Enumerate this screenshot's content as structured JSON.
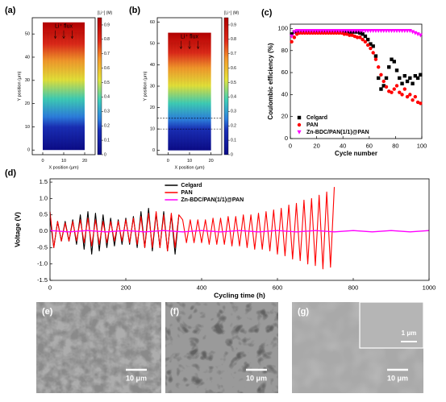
{
  "chart_data": [
    {
      "type": "contour",
      "panel_label": "(a)",
      "xlabel": "X position (μm)",
      "ylabel": "Y position (μm)",
      "xlim": [
        -5,
        25
      ],
      "xticks": [
        0,
        10,
        20
      ],
      "ylim": [
        -2,
        57
      ],
      "yticks": [
        0,
        10,
        20,
        30,
        40,
        50
      ],
      "domain_x": [
        0,
        20
      ],
      "domain_y": [
        0,
        55
      ],
      "annotation": "Li⁺ flux",
      "colorbar_label": "[Li⁺] (M)",
      "colorbar_lim": [
        0,
        0.95
      ],
      "colorbar_ticks": [
        0,
        0.1,
        0.2,
        0.3,
        0.4,
        0.5,
        0.6,
        0.7,
        0.8,
        0.9
      ]
    },
    {
      "type": "contour",
      "panel_label": "(b)",
      "xlabel": "X position (μm)",
      "ylabel": "Y position (μm)",
      "xlim": [
        -5,
        25
      ],
      "xticks": [
        0,
        10,
        20
      ],
      "ylim": [
        -2,
        62
      ],
      "yticks": [
        0,
        10,
        20,
        30,
        40,
        50,
        60
      ],
      "domain_x": [
        0,
        20
      ],
      "domain_y": [
        0,
        55
      ],
      "annotation": "Li⁺ flux",
      "dashed_lines": [
        10,
        15
      ],
      "colorbar_label": "[Li⁺] (M)",
      "colorbar_lim": [
        0,
        0.95
      ],
      "colorbar_ticks": [
        0,
        0.1,
        0.2,
        0.3,
        0.4,
        0.5,
        0.6,
        0.7,
        0.8,
        0.9
      ]
    },
    {
      "type": "scatter",
      "panel_label": "(c)",
      "xlabel": "Cycle number",
      "ylabel": "Coulombic efficiency (%)",
      "xlim": [
        0,
        100
      ],
      "xticks": [
        0,
        20,
        40,
        60,
        80,
        100
      ],
      "ylim": [
        0,
        104
      ],
      "yticks": [
        0,
        20,
        40,
        60,
        80,
        100
      ],
      "legend": "lower left",
      "x": [
        1,
        3,
        5,
        7,
        9,
        11,
        13,
        15,
        17,
        19,
        21,
        23,
        25,
        27,
        29,
        31,
        33,
        35,
        37,
        39,
        41,
        43,
        45,
        47,
        49,
        51,
        53,
        55,
        57,
        59,
        61,
        63,
        65,
        67,
        69,
        71,
        73,
        75,
        77,
        79,
        81,
        83,
        85,
        87,
        89,
        91,
        93,
        95,
        97,
        99
      ],
      "series": [
        {
          "name": "Celgard",
          "color": "#000000",
          "marker": "square",
          "values": [
            95,
            97,
            97,
            97,
            97,
            97,
            97,
            97,
            97,
            97,
            97,
            97,
            97,
            97,
            97,
            97,
            97,
            97,
            97,
            97,
            97,
            97,
            97,
            97,
            97,
            97,
            96,
            95,
            93,
            90,
            86,
            84,
            75,
            55,
            45,
            48,
            55,
            65,
            72,
            70,
            62,
            55,
            50,
            57,
            52,
            55,
            50,
            57,
            55,
            58
          ]
        },
        {
          "name": "PAN",
          "color": "#ff0000",
          "marker": "circle",
          "values": [
            88,
            92,
            95,
            96,
            96,
            96,
            96,
            96,
            96,
            96,
            96,
            96,
            96,
            96,
            96,
            96,
            96,
            96,
            96,
            96,
            95,
            95,
            94,
            94,
            93,
            92,
            92,
            90,
            88,
            85,
            82,
            78,
            72,
            65,
            58,
            52,
            47,
            43,
            42,
            45,
            48,
            42,
            40,
            45,
            38,
            40,
            35,
            38,
            33,
            32
          ]
        },
        {
          "name": "Zn-BDC/PAN(1/1)@PAN",
          "color": "#ff00ff",
          "marker": "triangle",
          "values": [
            93,
            97,
            98,
            98,
            98,
            98,
            98,
            98,
            98,
            98,
            98,
            98,
            98,
            98,
            98,
            98,
            98,
            98,
            98,
            98,
            98,
            98,
            98,
            98,
            98,
            98,
            98,
            98,
            98,
            98,
            98,
            98,
            98,
            98,
            98,
            98,
            98,
            98,
            98,
            98,
            98,
            98,
            98,
            98,
            98,
            98,
            97,
            96,
            95,
            94
          ]
        }
      ]
    },
    {
      "type": "line",
      "panel_label": "(d)",
      "xlabel": "Cycling time (h)",
      "ylabel": "Voltage (V)",
      "xlim": [
        0,
        1000
      ],
      "xticks": [
        0,
        200,
        400,
        600,
        800,
        1000
      ],
      "ylim": [
        -1.5,
        1.6
      ],
      "yticks": [
        -1.5,
        {
          "value": -1,
          "label": "-1.0"
        },
        -0.5,
        {
          "value": 0,
          "label": "0.0"
        },
        0.5,
        {
          "value": 1,
          "label": "1.0"
        },
        1.5
      ],
      "legend": "upper center",
      "series": [
        {
          "name": "Celgard",
          "color": "#000000",
          "x": [
            0,
            10,
            20,
            30,
            40,
            50,
            60,
            70,
            80,
            90,
            100,
            110,
            120,
            130,
            140,
            150,
            160,
            170,
            180,
            190,
            200,
            210,
            220,
            230,
            240,
            250,
            260,
            270,
            280,
            290,
            300,
            310,
            320,
            330,
            340
          ],
          "values": [
            0.4,
            -0.5,
            0.3,
            -0.3,
            0.3,
            -0.3,
            0.35,
            -0.4,
            0.5,
            -0.55,
            0.6,
            -0.7,
            0.55,
            -0.6,
            0.5,
            -0.5,
            0.4,
            -0.45,
            0.35,
            -0.4,
            0.4,
            -0.4,
            0.45,
            -0.5,
            0.6,
            -0.5,
            0.7,
            -0.6,
            0.55,
            -0.5,
            0.6,
            -0.6,
            0.5,
            -0.7,
            0.5
          ]
        },
        {
          "name": "PAN",
          "color": "#ff0000",
          "x": [
            0,
            10,
            20,
            30,
            40,
            50,
            60,
            70,
            80,
            90,
            100,
            110,
            120,
            130,
            140,
            150,
            160,
            170,
            180,
            190,
            200,
            210,
            220,
            230,
            240,
            250,
            260,
            270,
            280,
            290,
            300,
            310,
            320,
            330,
            340,
            350,
            360,
            370,
            380,
            390,
            400,
            410,
            420,
            430,
            440,
            450,
            460,
            470,
            480,
            490,
            500,
            510,
            520,
            530,
            540,
            550,
            560,
            570,
            580,
            590,
            600,
            610,
            620,
            630,
            640,
            650,
            660,
            670,
            680,
            690,
            700,
            710,
            720,
            730,
            740,
            750
          ],
          "values": [
            0.6,
            -0.5,
            0.3,
            -0.3,
            0.25,
            -0.3,
            0.3,
            -0.3,
            0.35,
            -0.35,
            0.4,
            -0.45,
            0.35,
            -0.4,
            0.3,
            -0.35,
            0.3,
            -0.3,
            0.3,
            -0.3,
            0.35,
            -0.35,
            0.4,
            -0.4,
            0.45,
            -0.5,
            0.55,
            -0.5,
            0.6,
            -0.5,
            0.5,
            -0.6,
            0.55,
            -0.5,
            0.5,
            0.35,
            -0.35,
            0.35,
            -0.35,
            0.35,
            -0.35,
            0.35,
            -0.4,
            0.4,
            -0.4,
            0.4,
            -0.4,
            0.45,
            -0.45,
            0.45,
            -0.45,
            0.5,
            -0.5,
            0.5,
            -0.55,
            0.55,
            -0.55,
            0.6,
            -0.6,
            0.65,
            -0.7,
            0.7,
            -0.75,
            0.8,
            -0.85,
            0.85,
            -0.9,
            0.95,
            -1.0,
            1.0,
            -1.05,
            1.1,
            -1.15,
            1.2,
            -1.1,
            1.35
          ]
        },
        {
          "name": "Zn-BDC/PAN(1/1)@PAN",
          "color": "#ff00ff",
          "x": [
            0,
            50,
            100,
            150,
            200,
            250,
            300,
            350,
            400,
            450,
            500,
            550,
            600,
            650,
            700,
            750,
            800,
            850,
            900,
            950,
            1000
          ],
          "values": [
            0.02,
            -0.02,
            0.02,
            -0.02,
            0.02,
            -0.02,
            0.02,
            -0.02,
            0.02,
            -0.02,
            0.02,
            -0.02,
            0.02,
            -0.02,
            0.02,
            -0.02,
            0.02,
            -0.02,
            0.02,
            -0.02,
            0.02
          ]
        }
      ]
    }
  ],
  "images": [
    {
      "label": "(e)",
      "scale_bar": "10 μm"
    },
    {
      "label": "(f)",
      "scale_bar": "10 μm"
    },
    {
      "label": "(g)",
      "scale_bar": "10 μm",
      "inset_scale_bar": "1 μm"
    }
  ]
}
